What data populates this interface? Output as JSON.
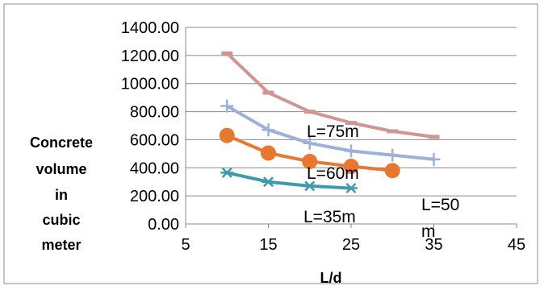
{
  "chart_data": {
    "type": "line",
    "title": "",
    "xlabel": "L/d",
    "ylabel": [
      "Concrete",
      "volume",
      "in",
      "cubic",
      "meter"
    ],
    "xlim": [
      5,
      45
    ],
    "ylim": [
      0,
      1400
    ],
    "x_ticks": [
      "5",
      "15",
      "25",
      "35",
      "45"
    ],
    "y_ticks": [
      "0.00",
      "200.00",
      "400.00",
      "600.00",
      "800.00",
      "1000.00",
      "1200.00",
      "1400.00"
    ],
    "grid": "horizontal",
    "legend": "none",
    "series": [
      {
        "marker": "dash",
        "color": "#d09694",
        "x": [
          10,
          15,
          20,
          25,
          30,
          35
        ],
        "y": [
          1215,
          935,
          800,
          720,
          660,
          620
        ]
      },
      {
        "marker": "plus",
        "color": "#9cb1d9",
        "x": [
          10,
          15,
          20,
          25,
          30,
          35
        ],
        "y": [
          840,
          670,
          575,
          520,
          490,
          460
        ]
      },
      {
        "marker": "circle",
        "color": "#e8772f",
        "x": [
          10,
          15,
          20,
          25,
          30
        ],
        "y": [
          630,
          505,
          445,
          410,
          380
        ]
      },
      {
        "marker": "star",
        "color": "#3e9aac",
        "x": [
          10,
          15,
          20,
          25
        ],
        "y": [
          365,
          300,
          270,
          255
        ]
      }
    ],
    "annotations": [
      "L=75m",
      "L=60m",
      "L=50",
      "m",
      "L=35m"
    ]
  }
}
